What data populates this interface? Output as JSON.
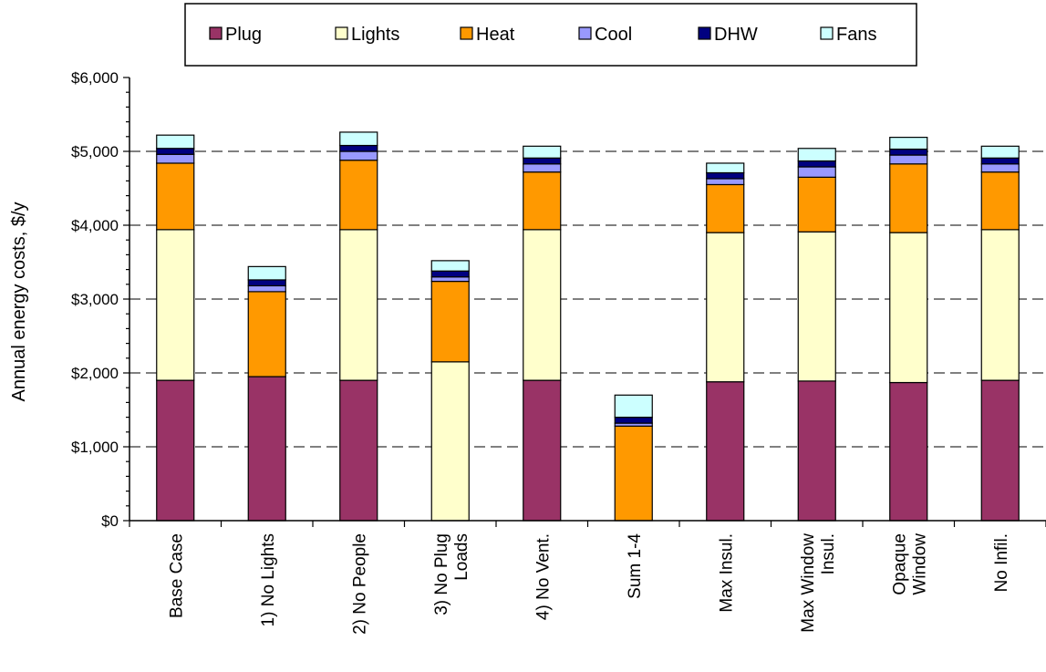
{
  "chart_data": {
    "type": "bar",
    "stacked": true,
    "title": "",
    "xlabel": "",
    "ylabel": "Annual energy costs, $/y",
    "ylim": [
      0,
      6000
    ],
    "yticks": [
      0,
      1000,
      2000,
      3000,
      4000,
      5000,
      6000
    ],
    "ytick_labels": [
      "$0",
      "$1,000",
      "$2,000",
      "$3,000",
      "$4,000",
      "$5,000",
      "$6,000"
    ],
    "grid": "horizontal dashed",
    "legend_position": "top",
    "categories": [
      [
        "Base Case"
      ],
      [
        "1) No Lights"
      ],
      [
        "2) No People"
      ],
      [
        "3) No Plug",
        "Loads"
      ],
      [
        "4) No Vent."
      ],
      [
        "Sum 1-4"
      ],
      [
        "Max Insul."
      ],
      [
        "Max Window",
        "Insul."
      ],
      [
        "Opaque",
        "Window"
      ],
      [
        "No Infil."
      ]
    ],
    "series": [
      {
        "name": "Plug",
        "color": "#993366",
        "values": [
          1900,
          1950,
          1900,
          0,
          1900,
          0,
          1880,
          1890,
          1870,
          1900
        ]
      },
      {
        "name": "Lights",
        "color": "#FFFFCC",
        "values": [
          2040,
          0,
          2040,
          2150,
          2040,
          0,
          2020,
          2020,
          2030,
          2040
        ]
      },
      {
        "name": "Heat",
        "color": "#FF9900",
        "values": [
          900,
          1150,
          940,
          1090,
          780,
          1280,
          650,
          740,
          930,
          780
        ]
      },
      {
        "name": "Cool",
        "color": "#9999FF",
        "values": [
          120,
          80,
          120,
          60,
          110,
          40,
          80,
          140,
          120,
          110
        ]
      },
      {
        "name": "DHW",
        "color": "#000080",
        "values": [
          80,
          80,
          80,
          80,
          80,
          80,
          80,
          80,
          80,
          80
        ]
      },
      {
        "name": "Fans",
        "color": "#CCFFFF",
        "values": [
          180,
          180,
          180,
          140,
          160,
          300,
          130,
          170,
          160,
          160
        ]
      }
    ]
  }
}
